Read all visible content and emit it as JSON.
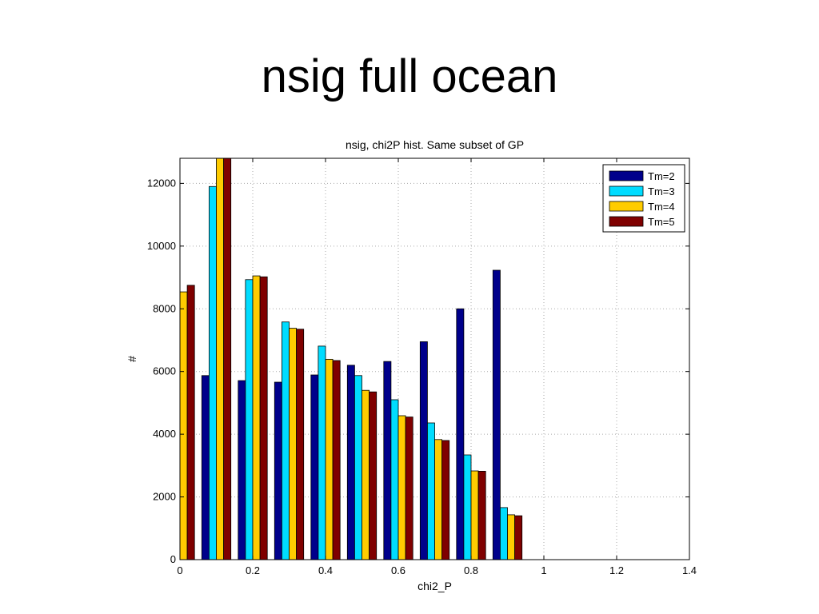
{
  "slide": {
    "title": "nsig full ocean"
  },
  "chart_data": {
    "type": "bar",
    "title": "nsig, chi2P hist. Same subset of GP",
    "xlabel": "chi2_P",
    "ylabel": "#",
    "xlim": [
      0,
      1.4
    ],
    "ylim": [
      0,
      12800
    ],
    "xticks": [
      0,
      0.2,
      0.4,
      0.6,
      0.8,
      1,
      1.2,
      1.4
    ],
    "xtick_labels": [
      "0",
      "0.2",
      "0.4",
      "0.6",
      "0.8",
      "1",
      "1.2",
      "1.4"
    ],
    "yticks": [
      0,
      2000,
      4000,
      6000,
      8000,
      10000,
      12000
    ],
    "ytick_labels": [
      "0",
      "2000",
      "4000",
      "6000",
      "8000",
      "10000",
      "12000"
    ],
    "grid": true,
    "legend_position": "top-right",
    "bin_centers": [
      0.0,
      0.1,
      0.2,
      0.3,
      0.4,
      0.5,
      0.6,
      0.7,
      0.8,
      0.9
    ],
    "series": [
      {
        "name": "Tm=2",
        "color": "#00008b",
        "values": [
          0,
          5870,
          5710,
          5660,
          5890,
          6200,
          6320,
          6950,
          8000,
          9230
        ]
      },
      {
        "name": "Tm=3",
        "color": "#00dcff",
        "values": [
          0,
          11900,
          8930,
          7580,
          6810,
          5870,
          5100,
          4360,
          3340,
          1660
        ]
      },
      {
        "name": "Tm=4",
        "color": "#ffcc00",
        "values": [
          8540,
          12800,
          9050,
          7380,
          6390,
          5400,
          4590,
          3830,
          2830,
          1430
        ]
      },
      {
        "name": "Tm=5",
        "color": "#7f0000",
        "values": [
          8750,
          12800,
          9020,
          7350,
          6350,
          5350,
          4550,
          3800,
          2820,
          1400
        ]
      }
    ]
  }
}
